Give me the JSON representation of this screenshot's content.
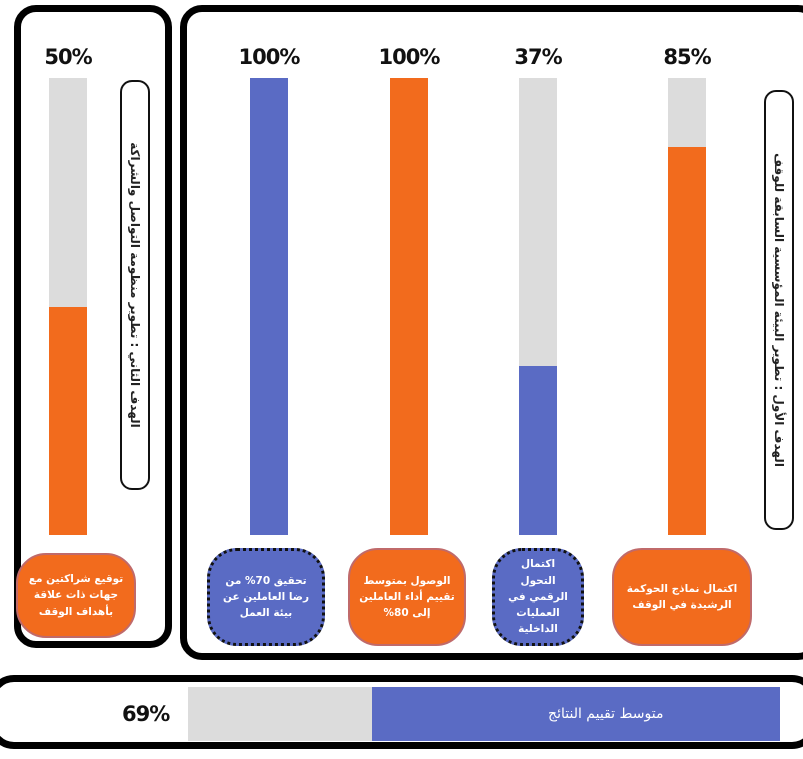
{
  "colors": {
    "orange": "#f26b1d",
    "blue": "#5a6bc4",
    "track": "#dcdcdc"
  },
  "chart_data": [
    {
      "type": "bar",
      "title": "الهدف الثاني : تطوير منظومة التواصل والشراكة",
      "ylim": [
        0,
        100
      ],
      "bars": [
        {
          "label": "توقيع شراكتين مع جهات ذات علاقة بأهداف الوقف",
          "value": 50,
          "value_label": "50%",
          "color": "#f26b1d"
        }
      ]
    },
    {
      "type": "bar",
      "title": "الهدف الأول : تطوير البيئة المؤسسية السابقة للوقف",
      "ylim": [
        0,
        100
      ],
      "bars": [
        {
          "label": "تحقيق 70% من رضا العاملين عن بيئة العمل",
          "value": 100,
          "value_label": "100%",
          "color": "#5a6bc4"
        },
        {
          "label": "الوصول بمتوسط تقييم أداء العاملين إلى 80%",
          "value": 100,
          "value_label": "100%",
          "color": "#f26b1d"
        },
        {
          "label": "اكتمال التحول الرقمي في العمليات الداخلية",
          "value": 37,
          "value_label": "37%",
          "color": "#5a6bc4"
        },
        {
          "label": "اكتمال نماذج الحوكمة الرشيدة في الوقف",
          "value": 85,
          "value_label": "85%",
          "color": "#f26b1d"
        }
      ]
    },
    {
      "type": "bar",
      "orientation": "horizontal",
      "title": "متوسط تقييم النتائج",
      "value": 69,
      "value_label": "69%",
      "color": "#5a6bc4"
    }
  ]
}
